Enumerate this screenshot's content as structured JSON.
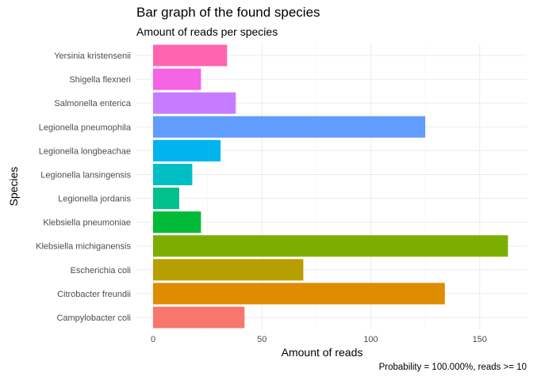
{
  "chart_data": {
    "type": "bar",
    "orientation": "horizontal",
    "title": "Bar graph of the found species",
    "subtitle": "Amount of reads per species",
    "caption": "Probability = 100.000%, reads >= 10",
    "xlabel": "Amount of reads",
    "ylabel": "Species",
    "xlim": [
      0,
      165
    ],
    "xticks": [
      0,
      50,
      100,
      150
    ],
    "grid": true,
    "legend": "none",
    "categories": [
      "Campylobacter coli",
      "Citrobacter freundii",
      "Escherichia coli",
      "Klebsiella michiganensis",
      "Klebsiella pneumoniae",
      "Legionella jordanis",
      "Legionella lansingensis",
      "Legionella longbeachae",
      "Legionella pneumophila",
      "Salmonella enterica",
      "Shigella flexneri",
      "Yersinia kristensenii"
    ],
    "values": [
      42,
      134,
      69,
      163,
      22,
      12,
      18,
      31,
      125,
      38,
      22,
      34
    ],
    "colors": [
      "#F8766D",
      "#DE8C00",
      "#B79F00",
      "#7CAE00",
      "#00BA38",
      "#00C08B",
      "#00BFC4",
      "#00B4F0",
      "#619CFF",
      "#C77CFF",
      "#F564E3",
      "#FF64B0"
    ]
  }
}
